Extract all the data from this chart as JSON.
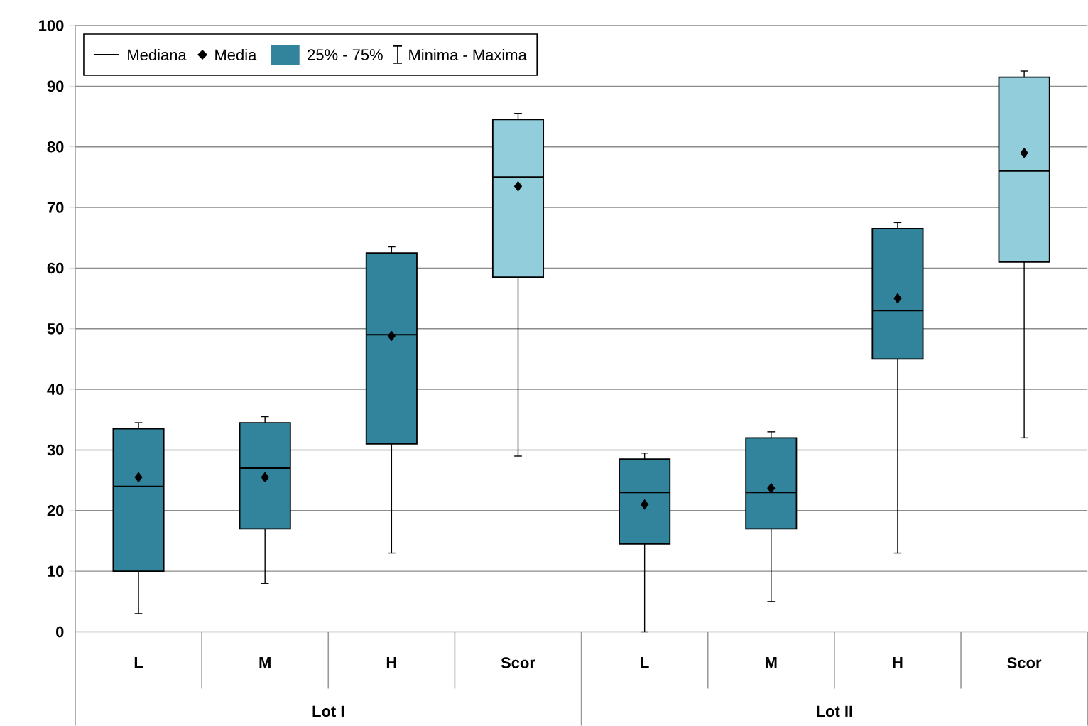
{
  "chart_data": {
    "type": "box",
    "categories": [
      "L",
      "M",
      "H",
      "Scor",
      "L",
      "M",
      "H",
      "Scor"
    ],
    "series": [
      {
        "name": "25% - 75%",
        "color": "#31849b",
        "colors": [
          "#31849b",
          "#31849b",
          "#31849b",
          "#92cddc",
          "#31849b",
          "#31849b",
          "#31849b",
          "#92cddc"
        ],
        "boxes": [
          {
            "low": 3,
            "q1": 10,
            "median": 24,
            "q3": 33.5,
            "high": 34.5,
            "mean": 25.5
          },
          {
            "low": 8,
            "q1": 17,
            "median": 27,
            "q3": 34.5,
            "high": 35.5,
            "mean": 25.5
          },
          {
            "low": 13,
            "q1": 31,
            "median": 49,
            "q3": 62.5,
            "high": 63.5,
            "mean": 48.8
          },
          {
            "low": 29,
            "q1": 58.5,
            "median": 75,
            "q3": 84.5,
            "high": 85.5,
            "mean": 73.5
          },
          {
            "low": 0,
            "q1": 14.5,
            "median": 23,
            "q3": 28.5,
            "high": 29.5,
            "mean": 21
          },
          {
            "low": 5,
            "q1": 17,
            "median": 23,
            "q3": 32,
            "high": 33,
            "mean": 23.7
          },
          {
            "low": 13,
            "q1": 45,
            "median": 53,
            "q3": 66.5,
            "high": 67.5,
            "mean": 55
          },
          {
            "low": 32,
            "q1": 61,
            "median": 76,
            "q3": 91.5,
            "high": 92.5,
            "mean": 79
          }
        ]
      }
    ],
    "ylim": [
      0,
      100
    ],
    "yticks": [
      0,
      10,
      20,
      30,
      40,
      50,
      60,
      70,
      80,
      90,
      100
    ],
    "grid": "y",
    "legend": "top left",
    "marker": "diamond",
    "annotations": [
      "Mediana",
      "Media",
      "Minima - Maxima",
      "Lot I",
      "Lot II"
    ]
  }
}
